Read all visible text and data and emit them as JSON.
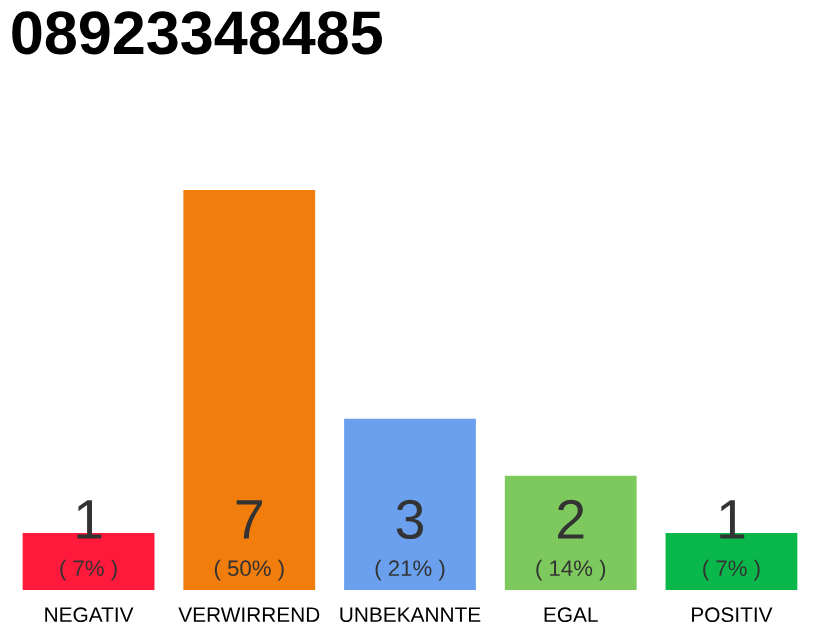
{
  "chart_data": {
    "type": "bar",
    "title": "08923348485",
    "categories": [
      "NEGATIV",
      "VERWIRREND",
      "UNBEKANNTE",
      "EGAL",
      "POSITIV"
    ],
    "values": [
      1,
      7,
      3,
      2,
      1
    ],
    "colors": [
      "#ff1a3c",
      "#f07d0c",
      "#6aa0ee",
      "#7dc95e",
      "#0ab74a"
    ],
    "value_labels": [
      "1\n( 7% )",
      "7\n( 50% )",
      "3\n( 21% )",
      "2\n( 14% )",
      "1\n( 7% )"
    ],
    "grid": false,
    "legend": false
  }
}
